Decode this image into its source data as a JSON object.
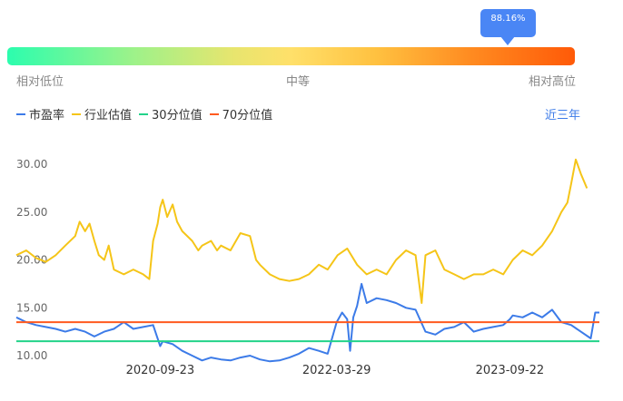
{
  "gauge": {
    "percentile_label": "88.16%",
    "percentile": 88.16,
    "low_label": "相对低位",
    "mid_label": "中等",
    "high_label": "相对高位"
  },
  "legend": {
    "items": [
      {
        "label": "市盈率",
        "color": "#3c7be8"
      },
      {
        "label": "行业估值",
        "color": "#f5c518"
      },
      {
        "label": "30分位值",
        "color": "#22d38a"
      },
      {
        "label": "70分位值",
        "color": "#ff5a1f"
      }
    ]
  },
  "period": {
    "label": "近三年"
  },
  "chart_data": {
    "type": "line",
    "ylim": [
      10,
      32
    ],
    "yticks": [
      10,
      15,
      20,
      25,
      30
    ],
    "ytick_labels": [
      "10.00",
      "15.00",
      "20.00",
      "25.00",
      "30.00"
    ],
    "xlim": [
      "2019-07-01",
      "2024-06-28"
    ],
    "xtick_labels": [
      "2020-09-23",
      "2022-03-29",
      "2023-09-22"
    ],
    "xticks": [
      "2020-09-23",
      "2022-03-29",
      "2023-09-22"
    ],
    "series": [
      {
        "name": "行业估值",
        "color": "#f5c518",
        "points": [
          [
            "2019-07-01",
            20.5
          ],
          [
            "2019-08-01",
            21.0
          ],
          [
            "2019-09-01",
            20.2
          ],
          [
            "2019-10-01",
            19.8
          ],
          [
            "2019-11-01",
            20.5
          ],
          [
            "2019-12-01",
            21.5
          ],
          [
            "2020-01-01",
            22.5
          ],
          [
            "2020-01-15",
            24.0
          ],
          [
            "2020-02-01",
            23.0
          ],
          [
            "2020-02-15",
            23.8
          ],
          [
            "2020-03-01",
            22.0
          ],
          [
            "2020-03-15",
            20.5
          ],
          [
            "2020-04-01",
            20.0
          ],
          [
            "2020-04-15",
            21.5
          ],
          [
            "2020-05-01",
            19.0
          ],
          [
            "2020-06-01",
            18.5
          ],
          [
            "2020-07-01",
            19.0
          ],
          [
            "2020-08-01",
            18.5
          ],
          [
            "2020-08-20",
            18.0
          ],
          [
            "2020-09-01",
            22.0
          ],
          [
            "2020-09-15",
            23.8
          ],
          [
            "2020-09-23",
            25.5
          ],
          [
            "2020-10-01",
            26.3
          ],
          [
            "2020-10-15",
            24.5
          ],
          [
            "2020-11-01",
            25.8
          ],
          [
            "2020-11-15",
            24.0
          ],
          [
            "2020-12-01",
            23.0
          ],
          [
            "2021-01-01",
            22.0
          ],
          [
            "2021-01-20",
            21.0
          ],
          [
            "2021-02-01",
            21.5
          ],
          [
            "2021-03-01",
            22.0
          ],
          [
            "2021-03-20",
            21.0
          ],
          [
            "2021-04-01",
            21.5
          ],
          [
            "2021-05-01",
            21.0
          ],
          [
            "2021-06-01",
            22.8
          ],
          [
            "2021-07-01",
            22.5
          ],
          [
            "2021-07-20",
            20.0
          ],
          [
            "2021-08-01",
            19.5
          ],
          [
            "2021-09-01",
            18.5
          ],
          [
            "2021-10-01",
            18.0
          ],
          [
            "2021-11-01",
            17.8
          ],
          [
            "2021-12-01",
            18.0
          ],
          [
            "2022-01-01",
            18.5
          ],
          [
            "2022-02-01",
            19.5
          ],
          [
            "2022-03-01",
            19.0
          ],
          [
            "2022-04-01",
            20.5
          ],
          [
            "2022-05-01",
            21.2
          ],
          [
            "2022-06-01",
            19.5
          ],
          [
            "2022-07-01",
            18.5
          ],
          [
            "2022-08-01",
            19.0
          ],
          [
            "2022-09-01",
            18.5
          ],
          [
            "2022-10-01",
            20.0
          ],
          [
            "2022-11-01",
            21.0
          ],
          [
            "2022-12-01",
            20.5
          ],
          [
            "2022-12-20",
            15.5
          ],
          [
            "2023-01-01",
            20.5
          ],
          [
            "2023-02-01",
            21.0
          ],
          [
            "2023-03-01",
            19.0
          ],
          [
            "2023-04-01",
            18.5
          ],
          [
            "2023-05-01",
            18.0
          ],
          [
            "2023-06-01",
            18.5
          ],
          [
            "2023-07-01",
            18.5
          ],
          [
            "2023-08-01",
            19.0
          ],
          [
            "2023-09-01",
            18.5
          ],
          [
            "2023-10-01",
            20.0
          ],
          [
            "2023-11-01",
            21.0
          ],
          [
            "2023-12-01",
            20.5
          ],
          [
            "2024-01-01",
            21.5
          ],
          [
            "2024-02-01",
            23.0
          ],
          [
            "2024-03-01",
            25.0
          ],
          [
            "2024-03-20",
            26.0
          ],
          [
            "2024-04-01",
            28.0
          ],
          [
            "2024-04-15",
            30.5
          ],
          [
            "2024-05-01",
            29.0
          ],
          [
            "2024-05-20",
            27.5
          ]
        ]
      },
      {
        "name": "市盈率",
        "color": "#3c7be8",
        "points": [
          [
            "2019-07-01",
            14.0
          ],
          [
            "2019-08-01",
            13.5
          ],
          [
            "2019-09-01",
            13.2
          ],
          [
            "2019-10-01",
            13.0
          ],
          [
            "2019-11-01",
            12.8
          ],
          [
            "2019-12-01",
            12.5
          ],
          [
            "2020-01-01",
            12.8
          ],
          [
            "2020-02-01",
            12.5
          ],
          [
            "2020-03-01",
            12.0
          ],
          [
            "2020-04-01",
            12.5
          ],
          [
            "2020-05-01",
            12.8
          ],
          [
            "2020-06-01",
            13.5
          ],
          [
            "2020-07-01",
            12.8
          ],
          [
            "2020-08-01",
            13.0
          ],
          [
            "2020-09-01",
            13.2
          ],
          [
            "2020-09-23",
            11.0
          ],
          [
            "2020-10-01",
            11.5
          ],
          [
            "2020-11-01",
            11.2
          ],
          [
            "2020-12-01",
            10.5
          ],
          [
            "2021-01-01",
            10.0
          ],
          [
            "2021-02-01",
            9.5
          ],
          [
            "2021-03-01",
            9.8
          ],
          [
            "2021-04-01",
            9.6
          ],
          [
            "2021-05-01",
            9.5
          ],
          [
            "2021-06-01",
            9.8
          ],
          [
            "2021-07-01",
            10.0
          ],
          [
            "2021-08-01",
            9.6
          ],
          [
            "2021-09-01",
            9.4
          ],
          [
            "2021-10-01",
            9.5
          ],
          [
            "2021-11-01",
            9.8
          ],
          [
            "2021-12-01",
            10.2
          ],
          [
            "2022-01-01",
            10.8
          ],
          [
            "2022-02-01",
            10.5
          ],
          [
            "2022-03-01",
            10.2
          ],
          [
            "2022-03-29",
            13.5
          ],
          [
            "2022-04-15",
            14.5
          ],
          [
            "2022-05-01",
            13.8
          ],
          [
            "2022-05-10",
            10.5
          ],
          [
            "2022-05-20",
            14.0
          ],
          [
            "2022-06-01",
            15.2
          ],
          [
            "2022-06-15",
            17.5
          ],
          [
            "2022-07-01",
            15.5
          ],
          [
            "2022-08-01",
            16.0
          ],
          [
            "2022-09-01",
            15.8
          ],
          [
            "2022-10-01",
            15.5
          ],
          [
            "2022-11-01",
            15.0
          ],
          [
            "2022-12-01",
            14.8
          ],
          [
            "2023-01-01",
            12.5
          ],
          [
            "2023-02-01",
            12.2
          ],
          [
            "2023-03-01",
            12.8
          ],
          [
            "2023-04-01",
            13.0
          ],
          [
            "2023-05-01",
            13.5
          ],
          [
            "2023-06-01",
            12.5
          ],
          [
            "2023-07-01",
            12.8
          ],
          [
            "2023-08-01",
            13.0
          ],
          [
            "2023-09-01",
            13.2
          ],
          [
            "2023-09-22",
            13.8
          ],
          [
            "2023-10-01",
            14.2
          ],
          [
            "2023-11-01",
            14.0
          ],
          [
            "2023-12-01",
            14.5
          ],
          [
            "2024-01-01",
            14.0
          ],
          [
            "2024-02-01",
            14.8
          ],
          [
            "2024-03-01",
            13.5
          ],
          [
            "2024-04-01",
            13.2
          ],
          [
            "2024-05-01",
            12.5
          ],
          [
            "2024-06-01",
            11.8
          ],
          [
            "2024-06-15",
            14.5
          ],
          [
            "2024-06-28",
            14.5
          ]
        ]
      }
    ],
    "reference_lines": [
      {
        "name": "30分位值",
        "color": "#22d38a",
        "value": 11.5
      },
      {
        "name": "70分位值",
        "color": "#ff5a1f",
        "value": 13.5
      }
    ]
  }
}
